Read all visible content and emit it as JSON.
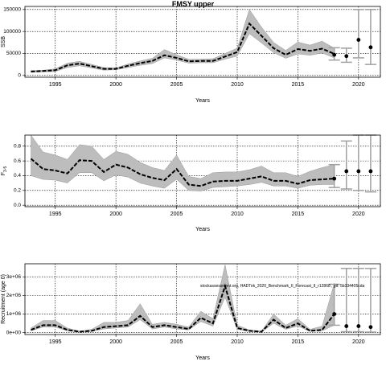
{
  "title": "FMSY upper",
  "source_text": "stockassessment.org, HADTok_2020_Benchmark_II_Forecast_II_r12868 , git: 5b334405cda",
  "colors": {
    "band": "#bdbdbd",
    "line": "#000000",
    "grid": "#000000"
  },
  "chart_data": [
    {
      "type": "line",
      "ylabel": "SSB",
      "xlabel": "Years",
      "xlim": [
        1992.5,
        2021.8
      ],
      "ylim": [
        -4000,
        157000
      ],
      "xticks": [
        1995,
        2000,
        2005,
        2010,
        2015,
        2020
      ],
      "yticks": [
        0,
        50000,
        100000,
        150000
      ],
      "ytick_labels": [
        "0",
        "50000",
        "100000",
        "150000"
      ],
      "grid": true,
      "x": [
        1993,
        1994,
        1995,
        1996,
        1997,
        1998,
        1999,
        2000,
        2001,
        2002,
        2003,
        2004,
        2005,
        2006,
        2007,
        2008,
        2009,
        2010,
        2011,
        2012,
        2013,
        2014,
        2015,
        2016,
        2017,
        2018
      ],
      "estimate": [
        9000,
        10000,
        12000,
        23000,
        27000,
        21000,
        15000,
        15000,
        22000,
        28000,
        33000,
        46000,
        40000,
        32000,
        33000,
        33000,
        43000,
        53000,
        118000,
        90000,
        62000,
        47000,
        60000,
        56000,
        61000,
        49000
      ],
      "lower": [
        7000,
        8000,
        9000,
        18000,
        22000,
        17000,
        12000,
        13000,
        18000,
        23000,
        27000,
        40000,
        35000,
        28000,
        29000,
        29000,
        37000,
        44000,
        95000,
        74000,
        52000,
        39000,
        49000,
        46000,
        51000,
        40000
      ],
      "upper": [
        11000,
        12000,
        15000,
        28000,
        32000,
        25000,
        18000,
        17000,
        26000,
        33000,
        39000,
        59000,
        47000,
        37000,
        37000,
        38000,
        50000,
        62000,
        150000,
        110000,
        75000,
        57000,
        76000,
        69000,
        78000,
        62000
      ],
      "forecast": [
        {
          "x": 2018,
          "y": 47000,
          "lo": 35000,
          "hi": 63000
        },
        {
          "x": 2019,
          "y": 44000,
          "lo": 30000,
          "hi": 62000
        },
        {
          "x": 2020,
          "y": 81000,
          "lo": 40000,
          "hi": 150000
        },
        {
          "x": 2021,
          "y": 64000,
          "lo": 25000,
          "hi": 150000
        }
      ]
    },
    {
      "type": "line",
      "ylabel": "F",
      "ylabel_sub": "3-5",
      "xlabel": "Years",
      "xlim": [
        1992.5,
        2021.8
      ],
      "ylim": [
        -0.02,
        0.95
      ],
      "xticks": [
        1995,
        2000,
        2005,
        2010,
        2015,
        2020
      ],
      "yticks": [
        0.0,
        0.2,
        0.4,
        0.6,
        0.8
      ],
      "ytick_labels": [
        "0.0",
        "0.2",
        "0.4",
        "0.6",
        "0.8"
      ],
      "grid": true,
      "x": [
        1993,
        1994,
        1995,
        1996,
        1997,
        1998,
        1999,
        2000,
        2001,
        2002,
        2003,
        2004,
        2005,
        2006,
        2007,
        2008,
        2009,
        2010,
        2011,
        2012,
        2013,
        2014,
        2015,
        2016,
        2017,
        2018
      ],
      "estimate": [
        0.63,
        0.49,
        0.47,
        0.43,
        0.61,
        0.6,
        0.45,
        0.55,
        0.51,
        0.42,
        0.37,
        0.34,
        0.49,
        0.28,
        0.26,
        0.32,
        0.33,
        0.33,
        0.36,
        0.39,
        0.33,
        0.33,
        0.29,
        0.34,
        0.35,
        0.36
      ],
      "lower": [
        0.4,
        0.35,
        0.34,
        0.3,
        0.44,
        0.44,
        0.33,
        0.41,
        0.38,
        0.3,
        0.26,
        0.23,
        0.35,
        0.2,
        0.19,
        0.24,
        0.25,
        0.26,
        0.28,
        0.31,
        0.26,
        0.26,
        0.23,
        0.27,
        0.28,
        0.28
      ],
      "upper": [
        0.95,
        0.72,
        0.68,
        0.62,
        0.82,
        0.8,
        0.62,
        0.73,
        0.69,
        0.58,
        0.51,
        0.47,
        0.68,
        0.39,
        0.36,
        0.44,
        0.45,
        0.45,
        0.48,
        0.53,
        0.44,
        0.44,
        0.39,
        0.46,
        0.51,
        0.55
      ],
      "forecast": [
        {
          "x": 2018,
          "y": 0.36,
          "lo": 0.24,
          "hi": 0.55
        },
        {
          "x": 2019,
          "y": 0.46,
          "lo": 0.22,
          "hi": 0.87
        },
        {
          "x": 2020,
          "y": 0.46,
          "lo": 0.2,
          "hi": 0.95
        },
        {
          "x": 2021,
          "y": 0.46,
          "lo": 0.18,
          "hi": 0.95
        }
      ]
    },
    {
      "type": "line",
      "ylabel": "Recruitment (age 0)",
      "xlabel": "Years",
      "xlim": [
        1992.5,
        2021.8
      ],
      "ylim": [
        -100000,
        3700000
      ],
      "xticks": [
        1995,
        2000,
        2005,
        2010,
        2015,
        2020
      ],
      "yticks": [
        0,
        1000000,
        2000000,
        3000000
      ],
      "ytick_labels": [
        "0e+00",
        "1e+06",
        "2e+06",
        "3e+06"
      ],
      "grid": true,
      "x": [
        1993,
        1994,
        1995,
        1996,
        1997,
        1998,
        1999,
        2000,
        2001,
        2002,
        2003,
        2004,
        2005,
        2006,
        2007,
        2008,
        2009,
        2010,
        2011,
        2012,
        2013,
        2014,
        2015,
        2016,
        2017,
        2018
      ],
      "estimate": [
        150000,
        400000,
        400000,
        150000,
        50000,
        100000,
        300000,
        350000,
        400000,
        900000,
        300000,
        400000,
        300000,
        200000,
        800000,
        500000,
        2500000,
        250000,
        100000,
        50000,
        700000,
        250000,
        500000,
        100000,
        150000,
        1000000
      ],
      "lower": [
        100000,
        300000,
        300000,
        100000,
        30000,
        70000,
        200000,
        250000,
        300000,
        700000,
        200000,
        300000,
        200000,
        150000,
        600000,
        350000,
        1900000,
        180000,
        70000,
        30000,
        500000,
        180000,
        350000,
        70000,
        100000,
        400000
      ],
      "upper": [
        250000,
        650000,
        650000,
        250000,
        80000,
        180000,
        550000,
        550000,
        650000,
        1550000,
        450000,
        550000,
        450000,
        300000,
        1150000,
        750000,
        3650000,
        400000,
        150000,
        80000,
        1000000,
        400000,
        750000,
        180000,
        350000,
        2650000
      ],
      "forecast": [
        {
          "x": 2018,
          "y": 1000000,
          "lo": 400000,
          "hi": 2600000
        },
        {
          "x": 2019,
          "y": 350000,
          "lo": 50000,
          "hi": 3450000
        },
        {
          "x": 2020,
          "y": 350000,
          "lo": 50000,
          "hi": 3450000
        },
        {
          "x": 2021,
          "y": 300000,
          "lo": 30000,
          "hi": 3450000
        }
      ]
    }
  ]
}
